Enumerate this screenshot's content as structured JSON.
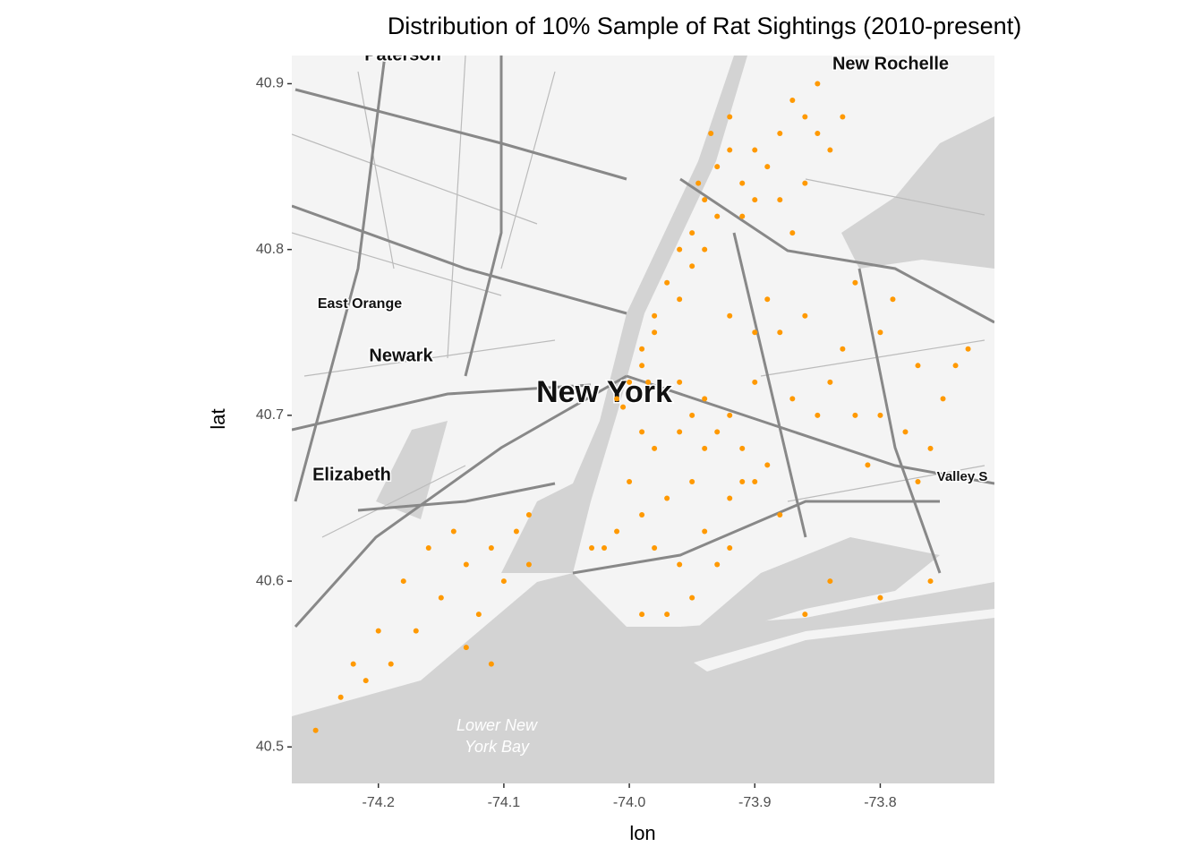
{
  "chart_data": {
    "type": "scatter",
    "title": "Distribution of 10% Sample of Rat Sightings (2010-present)",
    "x_label": "lon",
    "y_label": "lat",
    "color": "#ff9900",
    "xlim": [
      -74.269,
      -73.709
    ],
    "ylim": [
      40.478,
      40.917
    ],
    "xticks": [
      -74.2,
      -74.1,
      {
        "value": -74.0,
        "label": "-74.0"
      },
      -73.9,
      -73.8
    ],
    "yticks": [
      40.5,
      40.6,
      40.7,
      40.8,
      40.9
    ],
    "map_labels": [
      "Paterson",
      "New Rochelle",
      "East Orange",
      "Newark",
      "New York",
      "Elizabeth",
      "Valley S",
      "Lower New",
      "York Bay"
    ],
    "x": [
      -74.01,
      -74.0,
      -73.99,
      -73.98,
      -73.97,
      -73.96,
      -73.95,
      -73.94,
      -73.93,
      -73.92,
      -73.99,
      -73.98,
      -73.96,
      -73.95,
      -73.94,
      -73.93,
      -73.945,
      -73.935,
      -74.005,
      -73.985,
      -73.91,
      -73.9,
      -73.89,
      -73.88,
      -73.87,
      -73.86,
      -73.85,
      -73.91,
      -73.9,
      -73.88,
      -73.86,
      -73.84,
      -73.92,
      -73.85,
      -73.83,
      -73.87,
      -73.99,
      -73.98,
      -73.96,
      -73.95,
      -73.94,
      -73.93,
      -73.92,
      -73.91,
      -73.95,
      -73.97,
      -73.99,
      -74.01,
      -74.02,
      -73.98,
      -73.96,
      -73.94,
      -73.92,
      -73.9,
      -73.89,
      -73.97,
      -73.99,
      -73.95,
      -73.93,
      -74.0,
      -73.96,
      -73.94,
      -73.91,
      -74.03,
      -73.92,
      -73.88,
      -73.92,
      -73.9,
      -73.88,
      -73.86,
      -73.84,
      -73.82,
      -73.8,
      -73.78,
      -73.76,
      -73.75,
      -73.77,
      -73.8,
      -73.79,
      -73.82,
      -73.85,
      -73.87,
      -73.9,
      -73.74,
      -73.73,
      -73.83,
      -73.81,
      -73.77,
      -73.89,
      -73.76,
      -73.8,
      -73.86,
      -73.84,
      -74.25,
      -74.23,
      -74.21,
      -74.19,
      -74.17,
      -74.15,
      -74.13,
      -74.11,
      -74.09,
      -74.08,
      -74.14,
      -74.16,
      -74.12,
      -74.1,
      -74.18,
      -74.2,
      -74.22,
      -74.13,
      -74.11,
      -74.08
    ],
    "y": [
      40.71,
      40.72,
      40.74,
      40.76,
      40.78,
      40.8,
      40.81,
      40.83,
      40.85,
      40.86,
      40.73,
      40.75,
      40.77,
      40.79,
      40.8,
      40.82,
      40.84,
      40.87,
      40.705,
      40.72,
      40.84,
      40.86,
      40.85,
      40.87,
      40.89,
      40.88,
      40.87,
      40.82,
      40.83,
      40.83,
      40.84,
      40.86,
      40.88,
      40.9,
      40.88,
      40.81,
      40.69,
      40.68,
      40.69,
      40.7,
      40.68,
      40.69,
      40.7,
      40.68,
      40.66,
      40.65,
      40.64,
      40.63,
      40.62,
      40.62,
      40.61,
      40.63,
      40.65,
      40.66,
      40.67,
      40.58,
      40.58,
      40.59,
      40.61,
      40.66,
      40.72,
      40.71,
      40.66,
      40.62,
      40.62,
      40.64,
      40.76,
      40.75,
      40.75,
      40.76,
      40.72,
      40.7,
      40.7,
      40.69,
      40.68,
      40.71,
      40.73,
      40.75,
      40.77,
      40.78,
      40.7,
      40.71,
      40.72,
      40.73,
      40.74,
      40.74,
      40.67,
      40.66,
      40.77,
      40.6,
      40.59,
      40.58,
      40.6,
      40.51,
      40.53,
      40.54,
      40.55,
      40.57,
      40.59,
      40.61,
      40.62,
      40.63,
      40.64,
      40.63,
      40.62,
      40.58,
      40.6,
      40.6,
      40.57,
      40.55,
      40.56,
      40.55,
      40.61
    ]
  }
}
